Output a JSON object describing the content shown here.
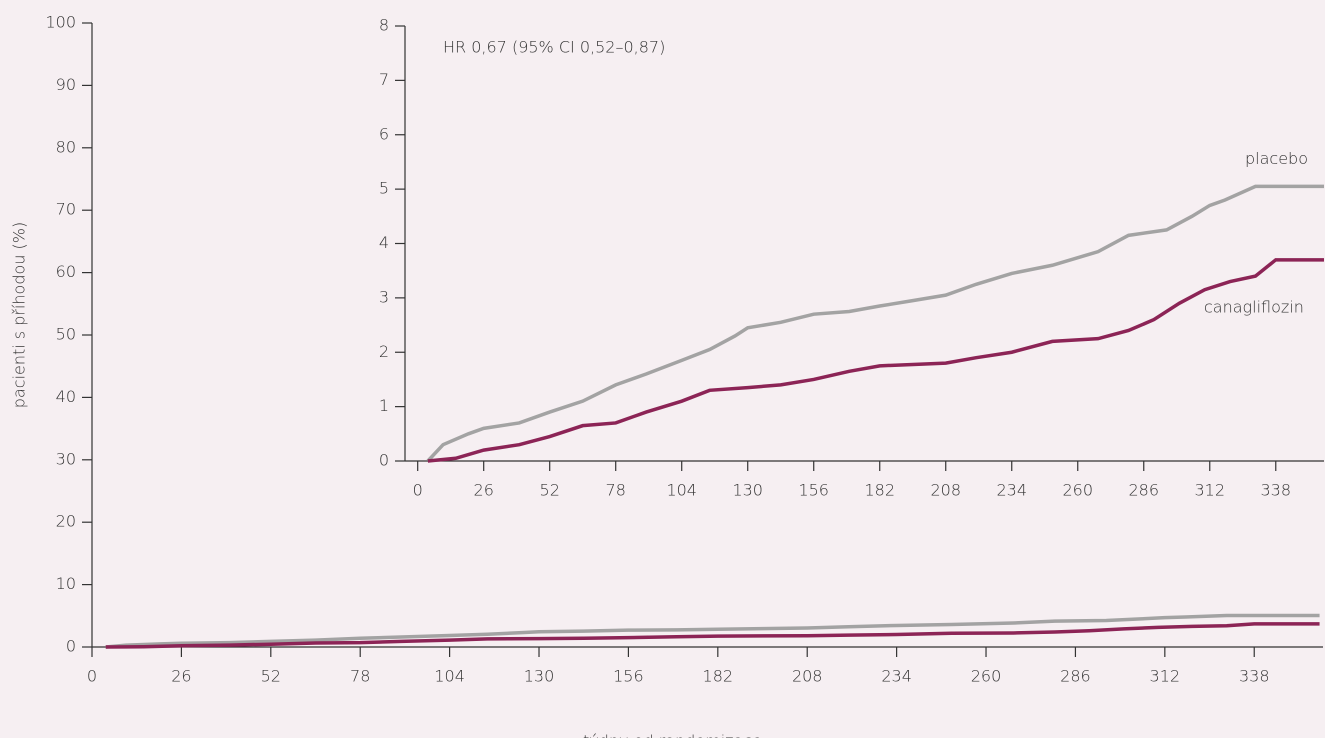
{
  "chart_data": [
    {
      "type": "line",
      "x_label": "týdny od randomizace",
      "y_label": "pacienti s  příhodou (%)",
      "xlim": [
        0,
        358
      ],
      "ylim": [
        0,
        100
      ],
      "xticks": [
        0,
        26,
        52,
        78,
        104,
        130,
        156,
        182,
        208,
        234,
        260,
        286,
        312,
        338
      ],
      "yticks": [
        0,
        10,
        20,
        30,
        40,
        50,
        60,
        70,
        80,
        90,
        100
      ],
      "series": [
        {
          "color": "#a3a3a3",
          "x": [
            4,
            10,
            20,
            26,
            40,
            52,
            65,
            78,
            90,
            104,
            115,
            125,
            130,
            143,
            156,
            170,
            182,
            195,
            208,
            220,
            234,
            250,
            268,
            280,
            295,
            305,
            312,
            318,
            330,
            357
          ],
          "values": [
            0,
            0.3,
            0.5,
            0.6,
            0.7,
            0.9,
            1.1,
            1.4,
            1.6,
            1.85,
            2.05,
            2.3,
            2.45,
            2.55,
            2.7,
            2.75,
            2.85,
            2.95,
            3.05,
            3.25,
            3.45,
            3.6,
            3.85,
            4.15,
            4.25,
            4.5,
            4.7,
            4.8,
            5.05,
            5.05
          ]
        },
        {
          "color": "#8c2456",
          "x": [
            4,
            15,
            26,
            40,
            52,
            65,
            78,
            90,
            104,
            115,
            130,
            143,
            156,
            170,
            182,
            208,
            220,
            234,
            250,
            268,
            280,
            290,
            300,
            310,
            320,
            330,
            338,
            357
          ],
          "values": [
            0,
            0.05,
            0.2,
            0.3,
            0.45,
            0.65,
            0.7,
            0.9,
            1.1,
            1.3,
            1.35,
            1.4,
            1.5,
            1.65,
            1.75,
            1.8,
            1.9,
            2.0,
            2.2,
            2.25,
            2.4,
            2.6,
            2.9,
            3.15,
            3.3,
            3.4,
            3.7,
            3.7
          ]
        }
      ]
    },
    {
      "type": "line",
      "annotation": "HR 0,67 (95% CI 0,52–0,87)",
      "xlim": [
        -5,
        357
      ],
      "ylim": [
        0,
        8
      ],
      "xticks": [
        0,
        26,
        52,
        78,
        104,
        130,
        156,
        182,
        208,
        234,
        260,
        286,
        312,
        338
      ],
      "yticks": [
        0,
        1,
        2,
        3,
        4,
        5,
        6,
        7,
        8
      ],
      "series": [
        {
          "name": "placebo",
          "color": "#a3a3a3",
          "x": [
            4,
            10,
            20,
            26,
            40,
            52,
            65,
            78,
            90,
            104,
            115,
            125,
            130,
            143,
            156,
            170,
            182,
            195,
            208,
            220,
            234,
            250,
            268,
            280,
            295,
            305,
            312,
            318,
            330,
            357
          ],
          "values": [
            0,
            0.3,
            0.5,
            0.6,
            0.7,
            0.9,
            1.1,
            1.4,
            1.6,
            1.85,
            2.05,
            2.3,
            2.45,
            2.55,
            2.7,
            2.75,
            2.85,
            2.95,
            3.05,
            3.25,
            3.45,
            3.6,
            3.85,
            4.15,
            4.25,
            4.5,
            4.7,
            4.8,
            5.05,
            5.05
          ]
        },
        {
          "name": "canagliflozin",
          "color": "#8c2456",
          "x": [
            4,
            15,
            26,
            40,
            52,
            65,
            78,
            90,
            104,
            115,
            130,
            143,
            156,
            170,
            182,
            208,
            220,
            234,
            250,
            268,
            280,
            290,
            300,
            310,
            320,
            330,
            338,
            357
          ],
          "values": [
            0,
            0.05,
            0.2,
            0.3,
            0.45,
            0.65,
            0.7,
            0.9,
            1.1,
            1.3,
            1.35,
            1.4,
            1.5,
            1.65,
            1.75,
            1.8,
            1.9,
            2.0,
            2.2,
            2.25,
            2.4,
            2.6,
            2.9,
            3.15,
            3.3,
            3.4,
            3.7,
            3.7
          ]
        }
      ]
    }
  ]
}
